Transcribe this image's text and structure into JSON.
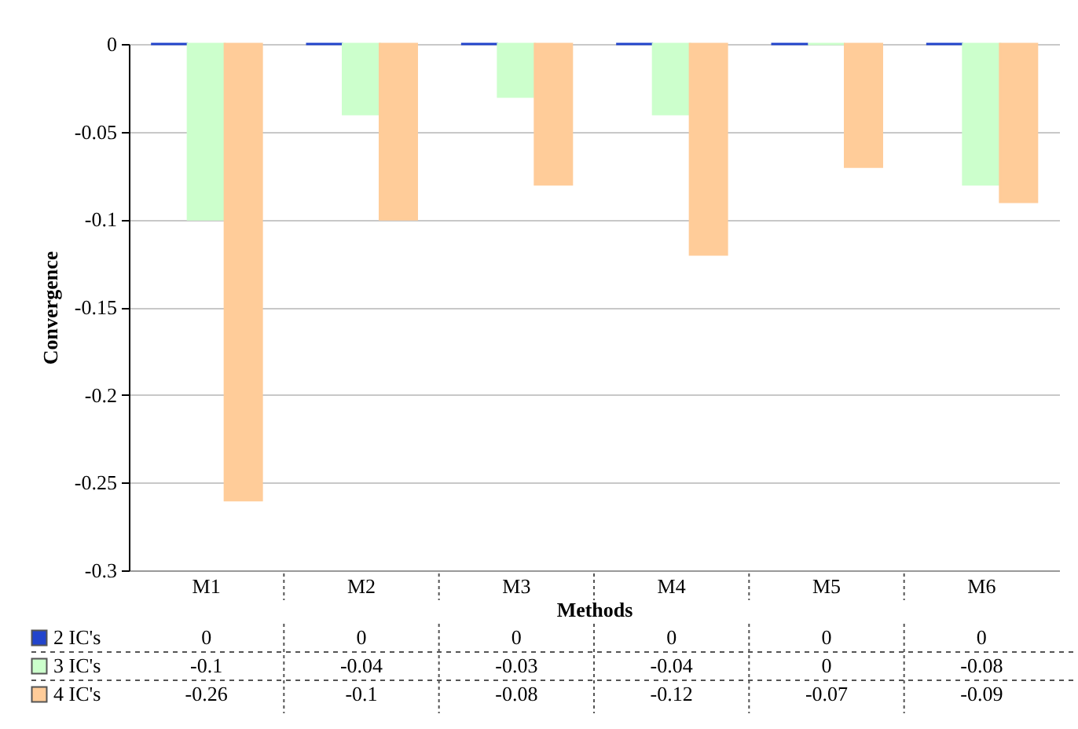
{
  "chart_data": {
    "type": "bar",
    "xlabel": "Methods",
    "ylabel": "Convergence",
    "categories": [
      "M1",
      "M2",
      "M3",
      "M4",
      "M5",
      "M6"
    ],
    "series": [
      {
        "name": "2 IC's",
        "color": "#2244cc",
        "values": [
          0,
          0,
          0,
          0,
          0,
          0
        ]
      },
      {
        "name": "3 IC's",
        "color": "#ccffcc",
        "values": [
          -0.1,
          -0.04,
          -0.03,
          -0.04,
          0,
          -0.08
        ]
      },
      {
        "name": "4 IC's",
        "color": "#ffcc99",
        "values": [
          -0.26,
          -0.1,
          -0.08,
          -0.12,
          -0.07,
          -0.09
        ]
      }
    ],
    "ylim": [
      -0.3,
      0
    ],
    "yticks": [
      0,
      -0.05,
      -0.1,
      -0.15,
      -0.2,
      -0.25,
      -0.3
    ],
    "grid": "y",
    "legend": "bottom",
    "data_labels": true
  }
}
